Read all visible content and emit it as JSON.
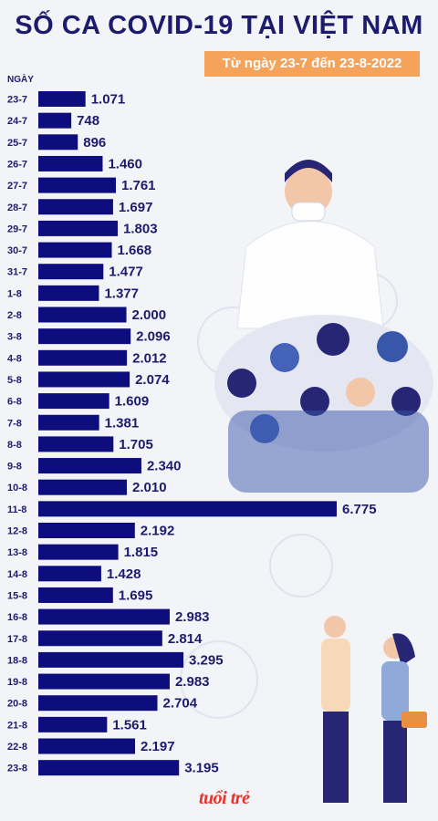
{
  "header": {
    "title": "SỐ CA COVID-19 TẠI VIỆT NAM",
    "date_range": "Từ ngày 23-7 đến 23-8-2022"
  },
  "brand": {
    "logo_text": "tuổi trẻ"
  },
  "colors": {
    "bar": "#0e0d7e",
    "text": "#1d1b6e",
    "accent": "#f5a35a"
  },
  "chart_data": {
    "type": "bar",
    "orientation": "horizontal",
    "title": "SỐ CA COVID-19 TẠI VIỆT NAM",
    "subtitle": "Từ ngày 23-7 đến 23-8-2022",
    "ylabel": "NGÀY",
    "xlabel": "",
    "categories": [
      "23-7",
      "24-7",
      "25-7",
      "26-7",
      "27-7",
      "28-7",
      "29-7",
      "30-7",
      "31-7",
      "1-8",
      "2-8",
      "3-8",
      "4-8",
      "5-8",
      "6-8",
      "7-8",
      "8-8",
      "9-8",
      "10-8",
      "11-8",
      "12-8",
      "13-8",
      "14-8",
      "15-8",
      "16-8",
      "17-8",
      "18-8",
      "19-8",
      "20-8",
      "21-8",
      "22-8",
      "23-8"
    ],
    "values": [
      1071,
      748,
      896,
      1460,
      1761,
      1697,
      1803,
      1668,
      1477,
      1377,
      2000,
      2096,
      2012,
      2074,
      1609,
      1381,
      1705,
      2340,
      2010,
      6775,
      2192,
      1815,
      1428,
      1695,
      2983,
      2814,
      3295,
      2983,
      2704,
      1561,
      2197,
      3195
    ],
    "value_labels": [
      "1.071",
      "748",
      "896",
      "1.460",
      "1.761",
      "1.697",
      "1.803",
      "1.668",
      "1.477",
      "1.377",
      "2.000",
      "2.096",
      "2.012",
      "2.074",
      "1.609",
      "1.381",
      "1.705",
      "2.340",
      "2.010",
      "6.775",
      "2.192",
      "1.815",
      "1.428",
      "1.695",
      "2.983",
      "2.814",
      "3.295",
      "2.983",
      "2.704",
      "1.561",
      "2.197",
      "3.195"
    ],
    "grid": false,
    "legend": "none"
  }
}
